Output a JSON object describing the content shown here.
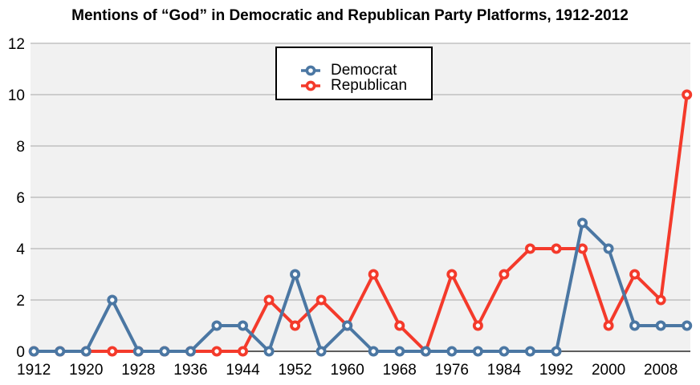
{
  "chart_data": {
    "type": "line",
    "title": "Mentions of “God” in Democratic and Republican Party Platforms, 1912-2012",
    "x": [
      1912,
      1916,
      1920,
      1924,
      1928,
      1932,
      1936,
      1940,
      1944,
      1948,
      1952,
      1956,
      1960,
      1964,
      1968,
      1972,
      1976,
      1980,
      1984,
      1988,
      1992,
      1996,
      2000,
      2004,
      2008,
      2012
    ],
    "series": [
      {
        "name": "Democrat",
        "color": "#4B77A3",
        "values": [
          0,
          0,
          0,
          2,
          0,
          0,
          0,
          1,
          1,
          0,
          3,
          0,
          1,
          0,
          0,
          0,
          0,
          0,
          0,
          0,
          0,
          5,
          4,
          1,
          1,
          1
        ]
      },
      {
        "name": "Republican",
        "color": "#F43A2B",
        "values": [
          0,
          0,
          0,
          0,
          0,
          0,
          0,
          0,
          0,
          2,
          1,
          2,
          1,
          3,
          1,
          0,
          3,
          1,
          3,
          4,
          4,
          4,
          1,
          3,
          2,
          10
        ]
      }
    ],
    "draw_order": [
      "Republican",
      "Democrat"
    ],
    "xlabel": "",
    "ylabel": "",
    "ylim": [
      0,
      12
    ],
    "yticks": [
      0,
      2,
      4,
      6,
      8,
      10,
      12
    ],
    "xtick_labels": [
      "1912",
      "1920",
      "1928",
      "1936",
      "1944",
      "1952",
      "1960",
      "1968",
      "1976",
      "1984",
      "1992",
      "2000",
      "2008"
    ],
    "grid": "horizontal",
    "legend_position": "top-center",
    "plot_bg": "#F1F1F1",
    "grid_color": "#A6A6A6",
    "axis_color": "#000000",
    "marker": "open-circle"
  }
}
